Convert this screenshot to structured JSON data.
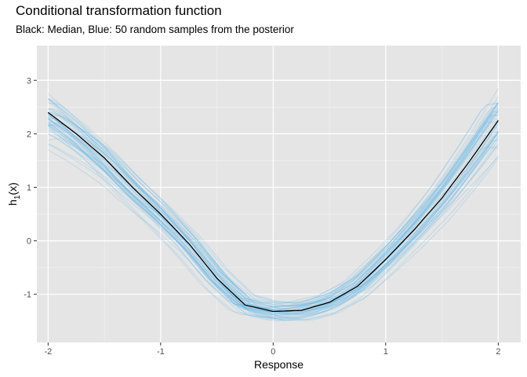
{
  "chart_data": {
    "type": "line",
    "title": "Conditional transformation function",
    "subtitle": "Black: Median, Blue: 50 random samples from the posterior",
    "xlabel": "Response",
    "ylabel_main": "h",
    "ylabel_sub": "1",
    "ylabel_rest": "(x)",
    "xlim": [
      -2.1,
      2.2
    ],
    "ylim": [
      -1.9,
      3.65
    ],
    "xticks": [
      -2,
      -1,
      0,
      1,
      2
    ],
    "xtick_labels": [
      "-2",
      "-1",
      "0",
      "1",
      "2"
    ],
    "yticks": [
      -1,
      0,
      1,
      2,
      3
    ],
    "ytick_labels": [
      "-1",
      "0",
      "1",
      "2",
      "3"
    ],
    "grid": true,
    "background": "#e5e5e5",
    "median_color": "#000000",
    "sample_color": "#56b4e9",
    "n_samples": 50,
    "series": [
      {
        "x": [
          -2.0,
          -1.75,
          -1.5,
          -1.25,
          -1.0,
          -0.75,
          -0.5,
          -0.25,
          0.0,
          0.25,
          0.5,
          0.75,
          1.0,
          1.25,
          1.5,
          1.75,
          2.0
        ],
        "values": [
          2.4,
          2.0,
          1.55,
          1.0,
          0.5,
          -0.05,
          -0.7,
          -1.2,
          -1.32,
          -1.3,
          -1.15,
          -0.85,
          -0.35,
          0.2,
          0.8,
          1.5,
          2.25
        ]
      }
    ]
  }
}
